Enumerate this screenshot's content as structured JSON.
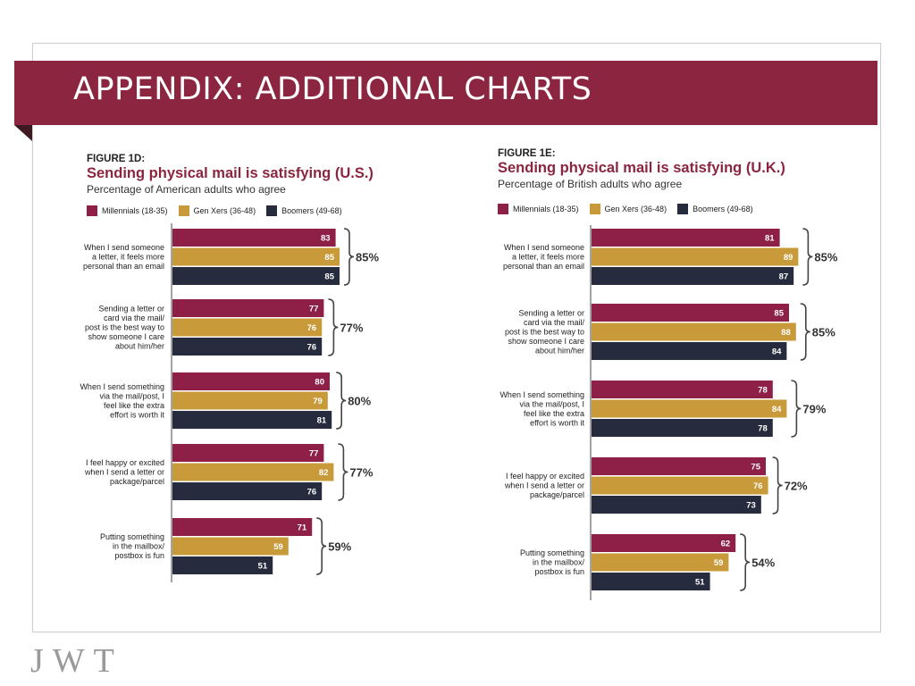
{
  "slide": {
    "title": "APPENDIX: ADDITIONAL CHARTS",
    "logo": "JWT",
    "brand_color": "#8b2540"
  },
  "series_colors": [
    "#8e1f47",
    "#c89a3a",
    "#262b3d"
  ],
  "chart_data": [
    {
      "type": "bar",
      "orientation": "horizontal",
      "figure_label": "FIGURE 1D:",
      "title": "Sending physical mail is satisfying (U.S.)",
      "subtitle": "Percentage of American adults who agree",
      "legend": [
        "Millennials (18-35)",
        "Gen Xers (36-48)",
        "Boomers (49-68)"
      ],
      "categories": [
        [
          "When I send someone",
          "a letter, it feels more",
          "personal than an email"
        ],
        [
          "Sending a letter or",
          "card via the mail/",
          "post is the best way to",
          "show someone I care",
          "about him/her"
        ],
        [
          "When I send something",
          "via the mail/post, I",
          "feel like the extra",
          "effort is worth it"
        ],
        [
          "I feel happy or excited",
          "when I send a letter or",
          "package/parcel"
        ],
        [
          "Putting something",
          "in the mailbox/",
          "postbox is fun"
        ]
      ],
      "series": [
        {
          "name": "Millennials (18-35)",
          "values": [
            83,
            77,
            80,
            77,
            71
          ]
        },
        {
          "name": "Gen Xers (36-48)",
          "values": [
            85,
            76,
            79,
            82,
            59
          ]
        },
        {
          "name": "Boomers (49-68)",
          "values": [
            85,
            76,
            81,
            76,
            51
          ]
        }
      ],
      "totals": [
        "85%",
        "77%",
        "80%",
        "77%",
        "59%"
      ]
    },
    {
      "type": "bar",
      "orientation": "horizontal",
      "figure_label": "FIGURE 1E:",
      "title": "Sending physical mail is satisfying (U.K.)",
      "subtitle": "Percentage of British adults who agree",
      "legend": [
        "Millennials (18-35)",
        "Gen Xers (36-48)",
        "Boomers (49-68)"
      ],
      "categories": [
        [
          "When I send someone",
          "a letter, it feels more",
          "personal than an email"
        ],
        [
          "Sending a letter or",
          "card via the mail/",
          "post is the best way to",
          "show someone I care",
          "about him/her"
        ],
        [
          "When I send something",
          "via the mail/post, I",
          "feel like the extra",
          "effort is worth it"
        ],
        [
          "I feel happy or excited",
          "when I send a letter or",
          "package/parcel"
        ],
        [
          "Putting something",
          "in the mailbox/",
          "postbox is fun"
        ]
      ],
      "series": [
        {
          "name": "Millennials (18-35)",
          "values": [
            81,
            85,
            78,
            75,
            62
          ]
        },
        {
          "name": "Gen Xers (36-48)",
          "values": [
            89,
            88,
            84,
            76,
            59
          ]
        },
        {
          "name": "Boomers (49-68)",
          "values": [
            87,
            84,
            78,
            73,
            51
          ]
        }
      ],
      "totals": [
        "85%",
        "85%",
        "79%",
        "72%",
        "54%"
      ]
    }
  ]
}
